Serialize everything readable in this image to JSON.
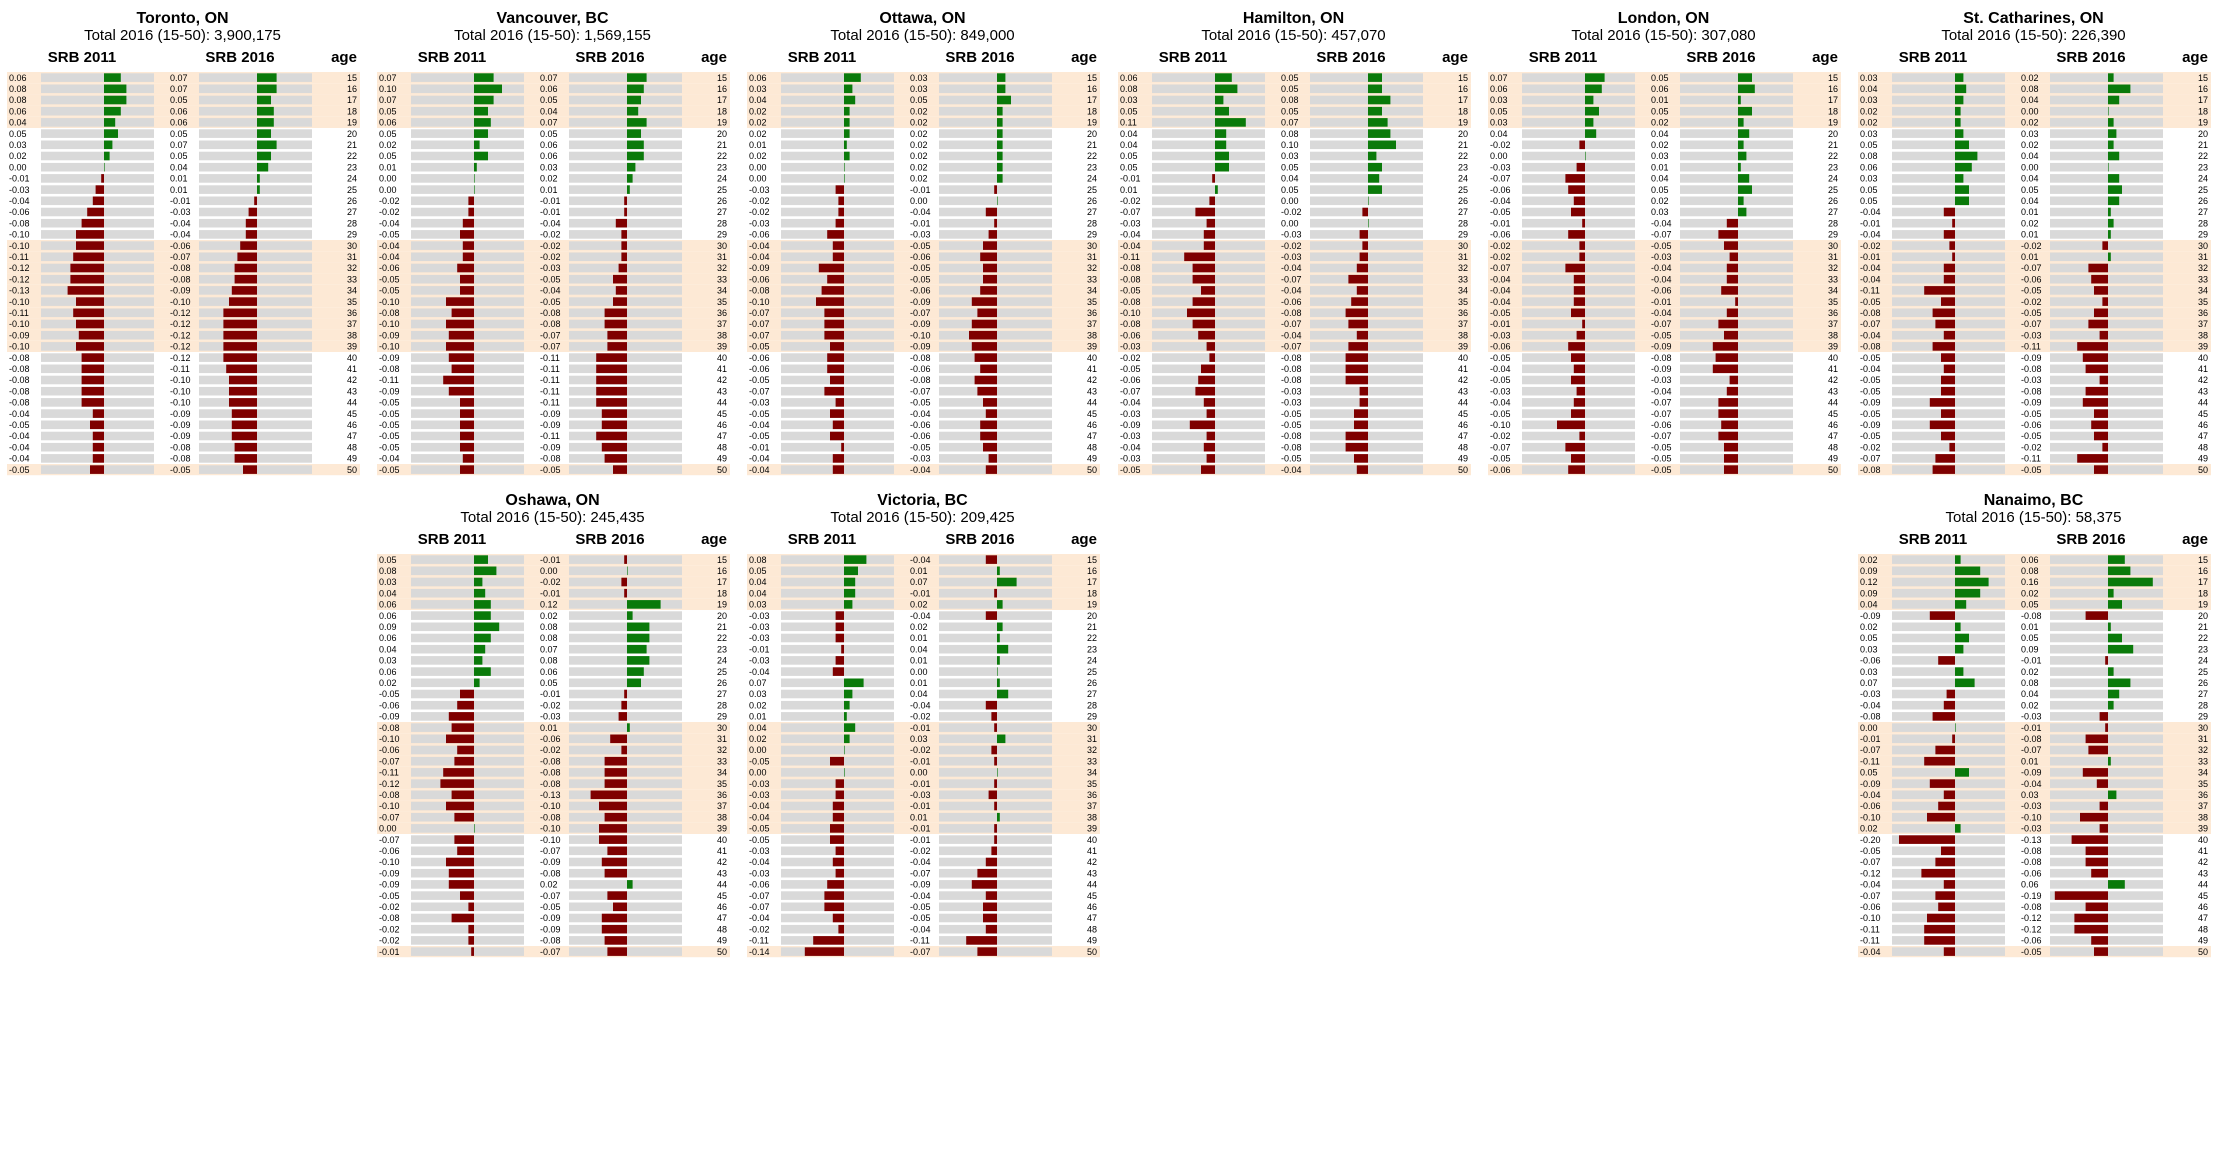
{
  "colors": {
    "positive": "#0a7a0a",
    "negative": "#7f0000",
    "track": "#d9d9d9",
    "highlight": "#fde9d5"
  },
  "headers": {
    "col1": "SRB 2011",
    "col2": "SRB 2016",
    "col3": "age"
  },
  "chart_data": [
    {
      "type": "bar",
      "title": "Toronto, ON",
      "subtitle": "Total 2016 (15-50): 3,900,175",
      "categories": [
        15,
        16,
        17,
        18,
        19,
        20,
        21,
        22,
        23,
        24,
        25,
        26,
        27,
        28,
        29,
        30,
        31,
        32,
        33,
        34,
        35,
        36,
        37,
        38,
        39,
        40,
        41,
        42,
        43,
        44,
        45,
        46,
        47,
        48,
        49,
        50
      ],
      "series": [
        {
          "name": "SRB 2011",
          "values": [
            0.06,
            0.08,
            0.08,
            0.06,
            0.04,
            0.05,
            0.03,
            0.02,
            0.0,
            -0.01,
            -0.03,
            -0.04,
            -0.06,
            -0.08,
            -0.1,
            -0.1,
            -0.11,
            -0.12,
            -0.12,
            -0.13,
            -0.1,
            -0.11,
            -0.1,
            -0.09,
            -0.1,
            -0.08,
            -0.08,
            -0.08,
            -0.08,
            -0.08,
            -0.04,
            -0.05,
            -0.04,
            -0.04,
            -0.04,
            -0.05
          ]
        },
        {
          "name": "SRB 2016",
          "values": [
            0.07,
            0.07,
            0.05,
            0.06,
            0.06,
            0.05,
            0.07,
            0.05,
            0.04,
            0.01,
            0.01,
            -0.01,
            -0.03,
            -0.04,
            -0.04,
            -0.06,
            -0.07,
            -0.08,
            -0.08,
            -0.09,
            -0.1,
            -0.12,
            -0.12,
            -0.12,
            -0.12,
            -0.12,
            -0.11,
            -0.1,
            -0.1,
            -0.1,
            -0.09,
            -0.09,
            -0.09,
            -0.08,
            -0.08,
            -0.05
          ]
        }
      ]
    },
    {
      "type": "bar",
      "title": "Vancouver, BC",
      "subtitle": "Total 2016 (15-50): 1,569,155",
      "categories": [
        15,
        16,
        17,
        18,
        19,
        20,
        21,
        22,
        23,
        24,
        25,
        26,
        27,
        28,
        29,
        30,
        31,
        32,
        33,
        34,
        35,
        36,
        37,
        38,
        39,
        40,
        41,
        42,
        43,
        44,
        45,
        46,
        47,
        48,
        49,
        50
      ],
      "series": [
        {
          "name": "SRB 2011",
          "values": [
            0.07,
            0.1,
            0.07,
            0.05,
            0.06,
            0.05,
            0.02,
            0.05,
            0.01,
            0.0,
            -0.0,
            -0.02,
            -0.02,
            -0.04,
            -0.05,
            -0.04,
            -0.04,
            -0.06,
            -0.05,
            -0.05,
            -0.1,
            -0.08,
            -0.1,
            -0.09,
            -0.1,
            -0.09,
            -0.08,
            -0.11,
            -0.09,
            -0.05,
            -0.05,
            -0.05,
            -0.05,
            -0.05,
            -0.04,
            -0.05
          ]
        },
        {
          "name": "SRB 2016",
          "values": [
            0.07,
            0.06,
            0.05,
            0.04,
            0.07,
            0.05,
            0.06,
            0.06,
            0.03,
            0.02,
            0.01,
            -0.01,
            -0.01,
            -0.04,
            -0.02,
            -0.02,
            -0.02,
            -0.03,
            -0.05,
            -0.04,
            -0.05,
            -0.08,
            -0.08,
            -0.07,
            -0.07,
            -0.11,
            -0.11,
            -0.11,
            -0.11,
            -0.11,
            -0.09,
            -0.09,
            -0.11,
            -0.09,
            -0.08,
            -0.05
          ]
        }
      ]
    },
    {
      "type": "bar",
      "title": "Ottawa, ON",
      "subtitle": "Total 2016 (15-50): 849,000",
      "categories": [
        15,
        16,
        17,
        18,
        19,
        20,
        21,
        22,
        23,
        24,
        25,
        26,
        27,
        28,
        29,
        30,
        31,
        32,
        33,
        34,
        35,
        36,
        37,
        38,
        39,
        40,
        41,
        42,
        43,
        44,
        45,
        46,
        47,
        48,
        49,
        50
      ],
      "series": [
        {
          "name": "SRB 2011",
          "values": [
            0.06,
            0.03,
            0.04,
            0.02,
            0.02,
            0.02,
            0.01,
            0.02,
            0.0,
            0.0,
            -0.03,
            -0.02,
            -0.02,
            -0.03,
            -0.06,
            -0.04,
            -0.04,
            -0.09,
            -0.06,
            -0.08,
            -0.1,
            -0.07,
            -0.07,
            -0.07,
            -0.05,
            -0.06,
            -0.06,
            -0.05,
            -0.07,
            -0.03,
            -0.05,
            -0.04,
            -0.05,
            -0.01,
            -0.04,
            -0.04
          ]
        },
        {
          "name": "SRB 2016",
          "values": [
            0.03,
            0.03,
            0.05,
            0.02,
            0.02,
            0.02,
            0.02,
            0.02,
            0.02,
            0.02,
            -0.01,
            0.0,
            -0.04,
            -0.01,
            -0.03,
            -0.05,
            -0.06,
            -0.05,
            -0.05,
            -0.06,
            -0.09,
            -0.07,
            -0.09,
            -0.1,
            -0.09,
            -0.08,
            -0.06,
            -0.08,
            -0.07,
            -0.05,
            -0.04,
            -0.06,
            -0.06,
            -0.05,
            -0.03,
            -0.04
          ]
        }
      ]
    },
    {
      "type": "bar",
      "title": "Hamilton, ON",
      "subtitle": "Total 2016 (15-50): 457,070",
      "categories": [
        15,
        16,
        17,
        18,
        19,
        20,
        21,
        22,
        23,
        24,
        25,
        26,
        27,
        28,
        29,
        30,
        31,
        32,
        33,
        34,
        35,
        36,
        37,
        38,
        39,
        40,
        41,
        42,
        43,
        44,
        45,
        46,
        47,
        48,
        49,
        50
      ],
      "series": [
        {
          "name": "SRB 2011",
          "values": [
            0.06,
            0.08,
            0.03,
            0.05,
            0.11,
            0.04,
            0.04,
            0.05,
            0.05,
            -0.01,
            0.01,
            -0.02,
            -0.07,
            -0.03,
            -0.04,
            -0.04,
            -0.11,
            -0.08,
            -0.08,
            -0.05,
            -0.08,
            -0.1,
            -0.08,
            -0.06,
            -0.03,
            -0.02,
            -0.05,
            -0.06,
            -0.07,
            -0.04,
            -0.03,
            -0.09,
            -0.03,
            -0.04,
            -0.03,
            -0.05
          ]
        },
        {
          "name": "SRB 2016",
          "values": [
            0.05,
            0.05,
            0.08,
            0.05,
            0.07,
            0.08,
            0.1,
            0.03,
            0.05,
            0.04,
            0.05,
            -0.0,
            -0.02,
            -0.0,
            -0.03,
            -0.02,
            -0.03,
            -0.04,
            -0.07,
            -0.04,
            -0.06,
            -0.08,
            -0.07,
            -0.04,
            -0.07,
            -0.08,
            -0.08,
            -0.08,
            -0.03,
            -0.03,
            -0.05,
            -0.05,
            -0.08,
            -0.08,
            -0.05,
            -0.04
          ]
        }
      ]
    },
    {
      "type": "bar",
      "title": "London, ON",
      "subtitle": "Total 2016 (15-50): 307,080",
      "categories": [
        15,
        16,
        17,
        18,
        19,
        20,
        21,
        22,
        23,
        24,
        25,
        26,
        27,
        28,
        29,
        30,
        31,
        32,
        33,
        34,
        35,
        36,
        37,
        38,
        39,
        40,
        41,
        42,
        43,
        44,
        45,
        46,
        47,
        48,
        49,
        50
      ],
      "series": [
        {
          "name": "SRB 2011",
          "values": [
            0.07,
            0.06,
            0.03,
            0.05,
            0.03,
            0.04,
            -0.02,
            -0.0,
            -0.03,
            -0.07,
            -0.06,
            -0.04,
            -0.05,
            -0.01,
            -0.06,
            -0.02,
            -0.02,
            -0.07,
            -0.04,
            -0.04,
            -0.04,
            -0.05,
            -0.01,
            -0.03,
            -0.06,
            -0.05,
            -0.04,
            -0.05,
            -0.03,
            -0.04,
            -0.05,
            -0.1,
            -0.02,
            -0.07,
            -0.05,
            -0.06
          ]
        },
        {
          "name": "SRB 2016",
          "values": [
            0.05,
            0.06,
            0.01,
            0.05,
            0.02,
            0.04,
            0.02,
            0.03,
            0.01,
            0.04,
            0.05,
            0.02,
            0.03,
            -0.04,
            -0.07,
            -0.05,
            -0.03,
            -0.04,
            -0.04,
            -0.06,
            -0.01,
            -0.04,
            -0.07,
            -0.05,
            -0.09,
            -0.08,
            -0.09,
            -0.03,
            -0.04,
            -0.07,
            -0.07,
            -0.06,
            -0.07,
            -0.05,
            -0.05,
            -0.05
          ]
        }
      ]
    },
    {
      "type": "bar",
      "title": "St. Catharines, ON",
      "subtitle": "Total 2016 (15-50): 226,390",
      "categories": [
        15,
        16,
        17,
        18,
        19,
        20,
        21,
        22,
        23,
        24,
        25,
        26,
        27,
        28,
        29,
        30,
        31,
        32,
        33,
        34,
        35,
        36,
        37,
        38,
        39,
        40,
        41,
        42,
        43,
        44,
        45,
        46,
        47,
        48,
        49,
        50
      ],
      "series": [
        {
          "name": "SRB 2011",
          "values": [
            0.03,
            0.04,
            0.03,
            0.02,
            0.02,
            0.03,
            0.05,
            0.08,
            0.06,
            0.03,
            0.05,
            0.05,
            -0.04,
            -0.01,
            -0.04,
            -0.02,
            -0.01,
            -0.04,
            -0.04,
            -0.11,
            -0.05,
            -0.08,
            -0.07,
            -0.04,
            -0.08,
            -0.05,
            -0.04,
            -0.05,
            -0.05,
            -0.09,
            -0.05,
            -0.09,
            -0.05,
            -0.02,
            -0.07,
            -0.08
          ]
        },
        {
          "name": "SRB 2016",
          "values": [
            0.02,
            0.08,
            0.04,
            -0.0,
            0.02,
            0.03,
            0.02,
            0.04,
            -0.0,
            0.04,
            0.05,
            0.04,
            0.01,
            0.02,
            0.01,
            -0.02,
            0.01,
            -0.07,
            -0.06,
            -0.05,
            -0.02,
            -0.05,
            -0.07,
            -0.03,
            -0.11,
            -0.09,
            -0.08,
            -0.03,
            -0.08,
            -0.09,
            -0.05,
            -0.06,
            -0.05,
            -0.02,
            -0.11,
            -0.05
          ]
        }
      ]
    },
    {
      "type": "bar",
      "title": "Oshawa, ON",
      "subtitle": "Total 2016 (15-50): 245,435",
      "categories": [
        15,
        16,
        17,
        18,
        19,
        20,
        21,
        22,
        23,
        24,
        25,
        26,
        27,
        28,
        29,
        30,
        31,
        32,
        33,
        34,
        35,
        36,
        37,
        38,
        39,
        40,
        41,
        42,
        43,
        44,
        45,
        46,
        47,
        48,
        49,
        50
      ],
      "series": [
        {
          "name": "SRB 2011",
          "values": [
            0.05,
            0.08,
            0.03,
            0.04,
            0.06,
            0.06,
            0.09,
            0.06,
            0.04,
            0.03,
            0.06,
            0.02,
            -0.05,
            -0.06,
            -0.09,
            -0.08,
            -0.1,
            -0.06,
            -0.07,
            -0.11,
            -0.12,
            -0.08,
            -0.1,
            -0.07,
            0.0,
            -0.07,
            -0.06,
            -0.1,
            -0.09,
            -0.09,
            -0.05,
            -0.02,
            -0.08,
            -0.02,
            -0.02,
            -0.01
          ]
        },
        {
          "name": "SRB 2016",
          "values": [
            -0.01,
            0.0,
            -0.02,
            -0.01,
            0.12,
            0.02,
            0.08,
            0.08,
            0.07,
            0.08,
            0.06,
            0.05,
            -0.01,
            -0.02,
            -0.03,
            0.01,
            -0.06,
            -0.02,
            -0.08,
            -0.08,
            -0.08,
            -0.13,
            -0.1,
            -0.08,
            -0.1,
            -0.1,
            -0.07,
            -0.09,
            -0.08,
            0.02,
            -0.07,
            -0.05,
            -0.09,
            -0.09,
            -0.08,
            -0.07
          ]
        }
      ]
    },
    {
      "type": "bar",
      "title": "Victoria, BC",
      "subtitle": "Total 2016 (15-50): 209,425",
      "categories": [
        15,
        16,
        17,
        18,
        19,
        20,
        21,
        22,
        23,
        24,
        25,
        26,
        27,
        28,
        29,
        30,
        31,
        32,
        33,
        34,
        35,
        36,
        37,
        38,
        39,
        40,
        41,
        42,
        43,
        44,
        45,
        46,
        47,
        48,
        49,
        50
      ],
      "series": [
        {
          "name": "SRB 2011",
          "values": [
            0.08,
            0.05,
            0.04,
            0.04,
            0.03,
            -0.03,
            -0.03,
            -0.03,
            -0.01,
            -0.03,
            -0.04,
            0.07,
            0.03,
            0.02,
            0.01,
            0.04,
            0.02,
            0.0,
            -0.05,
            -0.0,
            -0.03,
            -0.03,
            -0.04,
            -0.04,
            -0.05,
            -0.05,
            -0.03,
            -0.04,
            -0.03,
            -0.06,
            -0.07,
            -0.07,
            -0.04,
            -0.02,
            -0.11,
            -0.14
          ]
        },
        {
          "name": "SRB 2016",
          "values": [
            -0.04,
            0.01,
            0.07,
            -0.01,
            0.02,
            -0.04,
            0.02,
            0.01,
            0.04,
            0.01,
            -0.0,
            0.01,
            0.04,
            -0.04,
            -0.02,
            -0.01,
            0.03,
            -0.02,
            -0.01,
            -0.0,
            -0.01,
            -0.03,
            -0.01,
            0.01,
            -0.01,
            -0.01,
            -0.02,
            -0.04,
            -0.07,
            -0.09,
            -0.04,
            -0.05,
            -0.05,
            -0.04,
            -0.11,
            -0.07
          ]
        }
      ]
    },
    {
      "type": "bar",
      "title": "Nanaimo, BC",
      "subtitle": "Total 2016 (15-50): 58,375",
      "categories": [
        15,
        16,
        17,
        18,
        19,
        20,
        21,
        22,
        23,
        24,
        25,
        26,
        27,
        28,
        29,
        30,
        31,
        32,
        33,
        34,
        35,
        36,
        37,
        38,
        39,
        40,
        41,
        42,
        43,
        44,
        45,
        46,
        47,
        48,
        49,
        50
      ],
      "series": [
        {
          "name": "SRB 2011",
          "values": [
            0.02,
            0.09,
            0.12,
            0.09,
            0.04,
            -0.09,
            0.02,
            0.05,
            0.03,
            -0.06,
            0.03,
            0.07,
            -0.03,
            -0.04,
            -0.08,
            0.0,
            -0.01,
            -0.07,
            -0.11,
            0.05,
            -0.09,
            -0.04,
            -0.06,
            -0.1,
            0.02,
            -0.2,
            -0.05,
            -0.07,
            -0.12,
            -0.04,
            -0.07,
            -0.06,
            -0.1,
            -0.11,
            -0.11,
            -0.04
          ]
        },
        {
          "name": "SRB 2016",
          "values": [
            0.06,
            0.08,
            0.16,
            0.02,
            0.05,
            -0.08,
            0.01,
            0.05,
            0.09,
            -0.01,
            0.02,
            0.08,
            0.04,
            0.02,
            -0.03,
            -0.01,
            -0.08,
            -0.07,
            0.01,
            -0.09,
            -0.04,
            0.03,
            -0.03,
            -0.1,
            -0.03,
            -0.13,
            -0.08,
            -0.08,
            -0.06,
            0.06,
            -0.19,
            -0.08,
            -0.12,
            -0.12,
            -0.06,
            -0.05
          ]
        }
      ]
    }
  ]
}
